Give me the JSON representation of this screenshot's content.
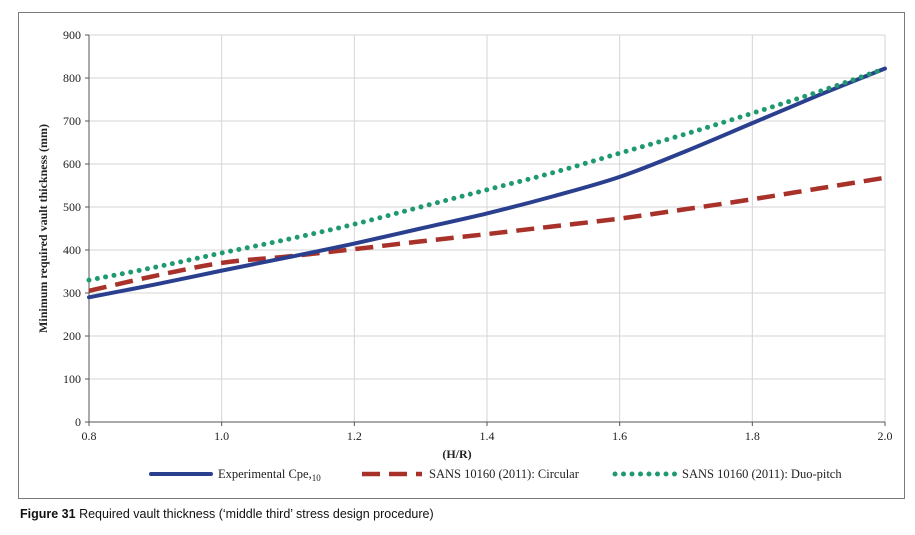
{
  "caption": {
    "label": "Figure 31",
    "text": "Required vault thickness (‘middle third’ stress design procedure)"
  },
  "chart_data": {
    "type": "line",
    "xlabel": "(H/R)",
    "ylabel": "Minimum required vault thickness (mm)",
    "xlim": [
      0.8,
      2.0
    ],
    "ylim": [
      0,
      900
    ],
    "xticks": [
      "0.8",
      "1.0",
      "1.2",
      "1.4",
      "1.6",
      "1.8",
      "2.0"
    ],
    "yticks": [
      "0",
      "100",
      "200",
      "300",
      "400",
      "500",
      "600",
      "700",
      "800",
      "900"
    ],
    "grid": true,
    "legend_position": "bottom",
    "series": [
      {
        "name": "Experimental Cpe,",
        "name_sub": "10",
        "style": "solid",
        "color": "#2b3f8f",
        "x": [
          0.8,
          0.9,
          1.0,
          1.1,
          1.2,
          1.3,
          1.4,
          1.5,
          1.6,
          1.7,
          1.8,
          1.9,
          2.0
        ],
        "y": [
          290,
          320,
          352,
          383,
          415,
          450,
          485,
          525,
          570,
          630,
          695,
          760,
          822
        ]
      },
      {
        "name": "SANS 10160 (2011): Circular",
        "style": "dashed",
        "color": "#a8322a",
        "x": [
          0.8,
          0.9,
          1.0,
          1.1,
          1.2,
          1.3,
          1.4,
          1.5,
          1.6,
          1.7,
          1.8,
          1.9,
          2.0
        ],
        "y": [
          305,
          340,
          370,
          385,
          402,
          420,
          437,
          455,
          473,
          495,
          518,
          543,
          568
        ]
      },
      {
        "name": "SANS 10160 (2011): Duo-pitch",
        "style": "dotted",
        "color": "#1f9a6e",
        "x": [
          0.8,
          0.9,
          1.0,
          1.1,
          1.2,
          1.3,
          1.4,
          1.5,
          1.6,
          1.7,
          1.8,
          1.9,
          2.0
        ],
        "y": [
          330,
          360,
          393,
          425,
          460,
          500,
          540,
          580,
          625,
          670,
          718,
          768,
          822
        ]
      }
    ]
  }
}
